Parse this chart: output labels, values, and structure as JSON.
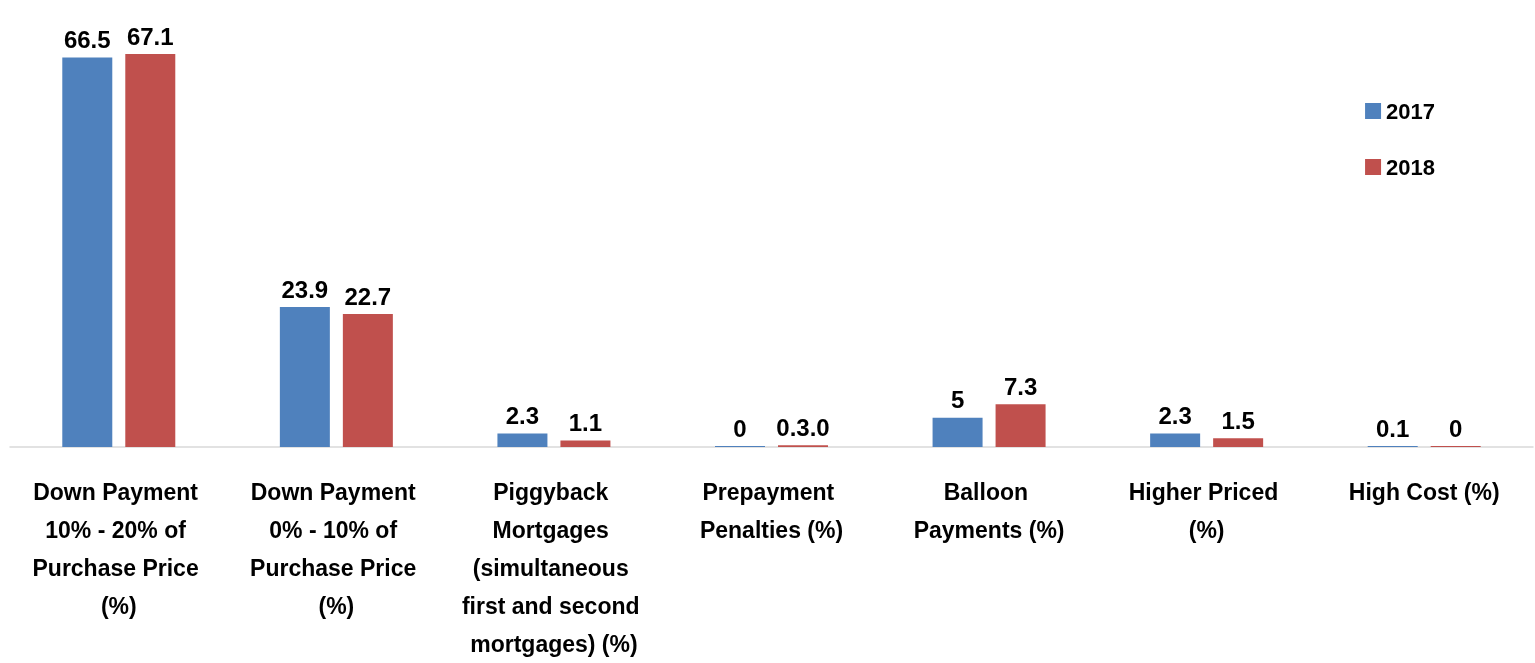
{
  "chart_data": {
    "type": "bar",
    "categories": [
      "Down Payment 10% - 20% of Purchase Price (%)",
      "Down Payment 0% - 10% of Purchase Price (%)",
      "Piggyback Mortgages (simultaneous first and second mortgages) (%)",
      "Prepayment Penalties (%)",
      "Balloon Payments (%)",
      "Higher Priced (%)",
      "High Cost (%)"
    ],
    "series": [
      {
        "name": "2017",
        "color": "#4f81bd",
        "values": [
          66.5,
          23.9,
          2.3,
          0,
          5,
          2.3,
          0.1
        ],
        "value_labels": [
          "66.5",
          "23.9",
          "2.3",
          "0",
          "5",
          "2.3",
          "0.1"
        ]
      },
      {
        "name": "2018",
        "color": "#c0504d",
        "values": [
          67.1,
          22.7,
          1.1,
          0.3,
          7.3,
          1.5,
          0
        ],
        "value_labels": [
          "67.1",
          "22.7",
          "1.1",
          "0.3.0",
          "7.3",
          "1.5",
          "0"
        ]
      }
    ],
    "legend": "top right",
    "grid": false
  }
}
